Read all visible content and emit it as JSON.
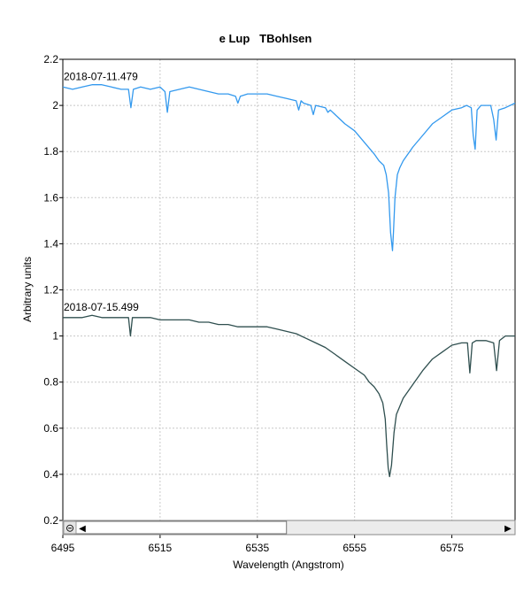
{
  "chart_data": {
    "type": "line",
    "title": "e Lup   TBohlsen",
    "xlabel": "Wavelength (Angstrom)",
    "ylabel": "Arbitrary units",
    "xlim": [
      6495,
      6588
    ],
    "ylim": [
      0.2,
      2.2
    ],
    "x_ticks": [
      6495,
      6515,
      6535,
      6555,
      6575
    ],
    "y_ticks": [
      0.2,
      0.4,
      0.6,
      0.8,
      1,
      1.2,
      1.4,
      1.6,
      1.8,
      2,
      2.2
    ],
    "grid": true,
    "colors": {
      "series1": "#3399ee",
      "series2": "#2f4f4f"
    },
    "series": [
      {
        "name": "2018-07-11.479",
        "x": [
          6495,
          6497,
          6499,
          6501,
          6503,
          6505,
          6507,
          6508.5,
          6509,
          6509.5,
          6511,
          6513,
          6515,
          6516,
          6516.5,
          6517,
          6519,
          6521,
          6523,
          6525,
          6527,
          6529,
          6530.5,
          6531,
          6531.5,
          6533,
          6535,
          6537,
          6539,
          6541,
          6543,
          6543.5,
          6544,
          6544.5,
          6546,
          6546.5,
          6547,
          6549,
          6549.5,
          6550,
          6551,
          6553,
          6555,
          6557,
          6559,
          6560,
          6561,
          6561.5,
          6562,
          6562.4,
          6562.8,
          6563,
          6563.3,
          6563.8,
          6564.3,
          6565,
          6567,
          6569,
          6571,
          6573,
          6575,
          6577,
          6578,
          6579,
          6579.4,
          6579.8,
          6580.2,
          6581,
          6583,
          6583.6,
          6584.1,
          6584.6,
          6586,
          6588
        ],
        "y": [
          2.08,
          2.07,
          2.08,
          2.09,
          2.09,
          2.08,
          2.07,
          2.07,
          1.99,
          2.07,
          2.08,
          2.07,
          2.08,
          2.06,
          1.97,
          2.06,
          2.07,
          2.08,
          2.07,
          2.06,
          2.05,
          2.05,
          2.04,
          2.01,
          2.04,
          2.05,
          2.05,
          2.05,
          2.04,
          2.03,
          2.02,
          1.98,
          2.02,
          2.01,
          2.0,
          1.96,
          2.0,
          1.99,
          1.97,
          1.98,
          1.96,
          1.92,
          1.89,
          1.84,
          1.79,
          1.76,
          1.74,
          1.7,
          1.62,
          1.45,
          1.37,
          1.45,
          1.6,
          1.7,
          1.73,
          1.76,
          1.82,
          1.87,
          1.92,
          1.95,
          1.98,
          1.99,
          2.0,
          1.99,
          1.87,
          1.81,
          1.98,
          2.0,
          2.0,
          1.94,
          1.85,
          1.98,
          1.99,
          2.01
        ]
      },
      {
        "name": "2018-07-15.499",
        "x": [
          6495,
          6497,
          6499,
          6501,
          6503,
          6505,
          6507,
          6508.5,
          6508.9,
          6509.3,
          6511,
          6513,
          6515,
          6517,
          6519,
          6521,
          6523,
          6525,
          6527,
          6529,
          6531,
          6533,
          6535,
          6537,
          6539,
          6541,
          6543,
          6545,
          6547,
          6549,
          6551,
          6553,
          6555,
          6557,
          6558,
          6559,
          6560,
          6560.8,
          6561.3,
          6561.6,
          6561.9,
          6562.2,
          6562.6,
          6563.1,
          6563.6,
          6564.2,
          6565,
          6567,
          6569,
          6571,
          6573,
          6575,
          6577,
          6578.2,
          6578.7,
          6579.2,
          6580,
          6582,
          6583.6,
          6584.2,
          6584.8,
          6586,
          6588
        ],
        "y": [
          1.08,
          1.08,
          1.08,
          1.09,
          1.08,
          1.08,
          1.08,
          1.08,
          1.0,
          1.08,
          1.08,
          1.08,
          1.07,
          1.07,
          1.07,
          1.07,
          1.06,
          1.06,
          1.05,
          1.05,
          1.04,
          1.04,
          1.04,
          1.04,
          1.03,
          1.02,
          1.01,
          0.99,
          0.97,
          0.95,
          0.92,
          0.89,
          0.86,
          0.83,
          0.8,
          0.78,
          0.75,
          0.71,
          0.64,
          0.53,
          0.43,
          0.39,
          0.44,
          0.58,
          0.66,
          0.69,
          0.73,
          0.79,
          0.85,
          0.9,
          0.93,
          0.96,
          0.97,
          0.97,
          0.84,
          0.97,
          0.98,
          0.98,
          0.97,
          0.85,
          0.98,
          1.0,
          1.0
        ]
      }
    ]
  },
  "scrollbar": {
    "zoom_out_glyph": "⊝",
    "left_arrow": "◀",
    "right_arrow": "▶",
    "thumb_start": 6497.5,
    "thumb_end": 6541
  }
}
